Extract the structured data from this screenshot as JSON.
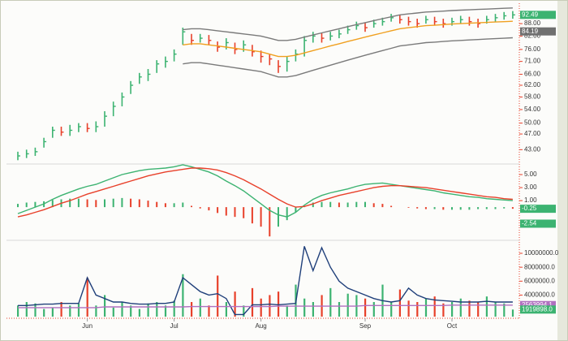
{
  "chart_data": [
    {
      "type": "ohlc",
      "log_scale": true,
      "ylim": [
        40,
        97
      ],
      "yticks": [
        {
          "value": 43,
          "label": "43.00"
        },
        {
          "value": 47,
          "label": "47.00"
        },
        {
          "value": 50,
          "label": "50.00"
        },
        {
          "value": 54,
          "label": "54.00"
        },
        {
          "value": 58,
          "label": "58.00"
        },
        {
          "value": 62,
          "label": "62.00"
        },
        {
          "value": 66,
          "label": "66.00"
        },
        {
          "value": 71,
          "label": "71.00"
        },
        {
          "value": 76,
          "label": "76.00"
        },
        {
          "value": 82,
          "label": "82.00"
        },
        {
          "value": 88,
          "label": "88.00"
        }
      ],
      "up_color": "#3cb371",
      "down_color": "#e8402a",
      "high": [
        42.5,
        43,
        43.5,
        46,
        49,
        49,
        49.5,
        50,
        50,
        50.5,
        53.5,
        56.5,
        59.5,
        63.5,
        66.5,
        68,
        71.5,
        73,
        76,
        86,
        83,
        83,
        82.5,
        79.5,
        81,
        79,
        80,
        78,
        75.5,
        74,
        71.5,
        73,
        76,
        82,
        84,
        83.5,
        84,
        85,
        87,
        89,
        88.5,
        90,
        91,
        93,
        92.5,
        91.5,
        90.5,
        92,
        91.5,
        90.5,
        91,
        92,
        91.5,
        90.5,
        92,
        93,
        94,
        94.5
      ],
      "low": [
        40.5,
        41,
        41.5,
        43.5,
        46,
        46.5,
        46.5,
        47.5,
        47.5,
        47.5,
        49,
        52,
        55,
        59,
        62.5,
        63.5,
        66.5,
        68.5,
        71,
        78,
        78,
        79,
        78,
        75,
        76,
        74,
        75,
        73,
        70.5,
        69.5,
        66.5,
        67,
        71,
        73,
        79,
        79,
        80,
        81,
        83,
        85,
        84,
        86,
        87,
        89,
        88,
        87,
        86,
        88,
        87,
        86,
        87,
        88,
        87,
        86,
        88,
        89,
        90,
        90.5
      ],
      "close": [
        41.5,
        42,
        42.5,
        45,
        48,
        47.5,
        48,
        49,
        48.5,
        49,
        52,
        55,
        58,
        62,
        65,
        66,
        70,
        71,
        74,
        84,
        80,
        81,
        80,
        77,
        79,
        76,
        78,
        75,
        73,
        72,
        69,
        71,
        74,
        80,
        82,
        81,
        82,
        83,
        85,
        87,
        86,
        88,
        89,
        91,
        90,
        89,
        88,
        90,
        89,
        88,
        89,
        90,
        89,
        88,
        90,
        91,
        92,
        92.49
      ],
      "series": [
        {
          "color": "#7a7a7a",
          "values": [
            null,
            null,
            null,
            null,
            null,
            null,
            null,
            null,
            null,
            null,
            null,
            null,
            null,
            null,
            null,
            null,
            null,
            null,
            null,
            85,
            85.5,
            85.5,
            85,
            84.5,
            84,
            83.5,
            83,
            82.5,
            82,
            81,
            80,
            80,
            80.5,
            81.5,
            82.5,
            83.5,
            84.5,
            85.5,
            86.5,
            87.5,
            88.5,
            89.5,
            90.5,
            91.5,
            92.5,
            93,
            93.5,
            94,
            94.2,
            94.5,
            94.8,
            95,
            95.2,
            95.4,
            95.6,
            95.8,
            96,
            96.2
          ]
        },
        {
          "color": "#7a7a7a",
          "values": [
            null,
            null,
            null,
            null,
            null,
            null,
            null,
            null,
            null,
            null,
            null,
            null,
            null,
            null,
            null,
            null,
            null,
            null,
            null,
            70,
            70.5,
            70.5,
            70,
            69.5,
            69,
            68.5,
            68,
            67.5,
            67,
            66,
            65,
            65,
            65.5,
            66.5,
            67.5,
            68.5,
            69.5,
            70.5,
            71.5,
            72.5,
            73.5,
            74.5,
            75.5,
            76.5,
            77.5,
            78,
            78.5,
            79,
            79.2,
            79.5,
            79.8,
            80,
            80.2,
            80.4,
            80.6,
            80.8,
            81,
            81.2
          ]
        },
        {
          "color": "#f0a020",
          "values": [
            null,
            null,
            null,
            null,
            null,
            null,
            null,
            null,
            null,
            null,
            null,
            null,
            null,
            null,
            null,
            null,
            null,
            null,
            null,
            78,
            78.5,
            78.5,
            78,
            77.5,
            77,
            76.5,
            76,
            75.5,
            75,
            74,
            73,
            73,
            73.5,
            74.5,
            75.5,
            76.5,
            77.5,
            78.5,
            79.5,
            80.5,
            81.5,
            82.5,
            83.5,
            84.5,
            85.5,
            86,
            86.5,
            87,
            87.2,
            87.5,
            87.8,
            88,
            88.2,
            88.4,
            88.6,
            88.8,
            89,
            89.2
          ]
        }
      ],
      "badges": [
        {
          "value": 92.49,
          "color": "#3cb371"
        },
        {
          "value": 84.19,
          "color": "#707070"
        }
      ]
    },
    {
      "type": "macd",
      "ylim": [
        -4.6,
        6.25
      ],
      "yticks": [
        {
          "value": 5,
          "label": "5.00"
        },
        {
          "value": 3,
          "label": "3.00"
        },
        {
          "value": 1,
          "label": "1.00"
        }
      ],
      "up_color": "#3cb371",
      "down_color": "#e8402a",
      "histogram": [
        0.5,
        0.7,
        0.8,
        0.9,
        1.1,
        1.2,
        1.3,
        1.3,
        1.2,
        1.1,
        1.2,
        1.3,
        1.4,
        1.3,
        1.2,
        1,
        0.8,
        0.6,
        0.6,
        0.7,
        0.2,
        -0.2,
        -0.5,
        -0.9,
        -1.3,
        -1.5,
        -1.7,
        -2.5,
        -3,
        -4.5,
        -3,
        -2,
        -0.8,
        0.2,
        0.7,
        0.8,
        0.8,
        0.7,
        0.7,
        0.8,
        0.8,
        0.6,
        0.5,
        0.2,
        0,
        -0.1,
        -0.2,
        -0.3,
        -0.3,
        -0.4,
        -0.4,
        -0.4,
        -0.4,
        -0.3,
        -0.3,
        -0.3,
        -0.2,
        -0.25
      ],
      "series": [
        {
          "color": "#3cb371",
          "values": [
            -1,
            -0.5,
            0,
            0.5,
            1.2,
            1.8,
            2.3,
            2.8,
            3.2,
            3.5,
            4,
            4.5,
            5,
            5.3,
            5.6,
            5.8,
            5.9,
            6,
            6.2,
            6.5,
            6.2,
            5.8,
            5.4,
            4.8,
            4,
            3.3,
            2.5,
            1.5,
            0.5,
            -0.5,
            -1.2,
            -1.5,
            -0.8,
            0.3,
            1.2,
            1.8,
            2.2,
            2.5,
            2.8,
            3.2,
            3.5,
            3.6,
            3.7,
            3.5,
            3.3,
            3.1,
            2.9,
            2.7,
            2.5,
            2.2,
            2,
            1.8,
            1.6,
            1.5,
            1.3,
            1.2,
            1.1,
            1
          ]
        },
        {
          "color": "#e8402a",
          "values": [
            -1.5,
            -1.2,
            -0.8,
            -0.4,
            0.1,
            0.6,
            1,
            1.5,
            2,
            2.4,
            2.8,
            3.2,
            3.6,
            4,
            4.4,
            4.8,
            5.1,
            5.4,
            5.6,
            5.8,
            6,
            6,
            5.9,
            5.7,
            5.3,
            4.8,
            4.2,
            3.5,
            2.8,
            2,
            1.2,
            0.5,
            0,
            0.1,
            0.5,
            1,
            1.4,
            1.8,
            2.1,
            2.4,
            2.7,
            3,
            3.2,
            3.3,
            3.3,
            3.2,
            3.1,
            3,
            2.8,
            2.6,
            2.4,
            2.2,
            2,
            1.8,
            1.6,
            1.5,
            1.3,
            1.2
          ]
        }
      ],
      "badges": [
        {
          "value": -0.25,
          "color": "#3cb371"
        },
        {
          "value": -2.54,
          "color": "#3cb371"
        }
      ]
    },
    {
      "type": "volume",
      "ylim": [
        900000,
        11400000
      ],
      "yticks": [
        {
          "value": 10000000,
          "label": "10000000.0"
        },
        {
          "value": 8000000,
          "label": "8000000.0"
        },
        {
          "value": 6000000,
          "label": "6000000.0"
        },
        {
          "value": 4000000,
          "label": "4000000.0"
        }
      ],
      "up_color": "#3cb371",
      "down_color": "#e8402a",
      "categories": [
        null,
        null,
        null,
        null,
        null,
        null,
        null,
        null,
        "Jun",
        null,
        null,
        null,
        null,
        null,
        null,
        null,
        null,
        null,
        "Jul",
        null,
        null,
        null,
        null,
        null,
        null,
        null,
        null,
        null,
        "Aug",
        null,
        null,
        null,
        null,
        null,
        null,
        null,
        null,
        null,
        null,
        null,
        "Sep",
        null,
        null,
        null,
        null,
        null,
        null,
        null,
        null,
        null,
        "Oct",
        null,
        null,
        null,
        null,
        null,
        null,
        null
      ],
      "values": [
        2500000,
        3000000,
        2800000,
        2000000,
        2200000,
        3000000,
        2500000,
        2800000,
        6500000,
        2500000,
        4000000,
        2200000,
        3000000,
        2500000,
        2000000,
        2800000,
        3000000,
        2500000,
        3200000,
        7000000,
        3000000,
        3500000,
        2500000,
        6800000,
        3000000,
        4500000,
        2500000,
        5000000,
        3500000,
        4000000,
        4500000,
        2500000,
        5500000,
        3500000,
        3000000,
        4000000,
        5000000,
        3000000,
        4200000,
        4000000,
        3500000,
        3000000,
        5500000,
        3000000,
        4800000,
        3200000,
        3000000,
        3500000,
        3800000,
        2800000,
        3000000,
        3500000,
        3200000,
        3000000,
        3800000,
        3000000,
        2800000,
        1919898
      ],
      "series": [
        {
          "color": "#1f3f7a",
          "values": [
            2500000,
            2500000,
            2600000,
            2700000,
            2700000,
            2800000,
            2800000,
            2800000,
            6500000,
            4000000,
            3500000,
            3000000,
            3000000,
            2800000,
            2700000,
            2700000,
            2800000,
            2800000,
            3000000,
            6500000,
            5500000,
            4500000,
            4000000,
            4200000,
            3500000,
            1200000,
            1200000,
            2600000,
            2600000,
            2700000,
            2600000,
            2700000,
            2800000,
            11000000,
            7500000,
            10800000,
            8000000,
            6000000,
            5000000,
            4500000,
            4000000,
            3500000,
            3200000,
            3000000,
            3200000,
            5000000,
            4000000,
            3500000,
            3300000,
            3200000,
            3100000,
            3000000,
            3000000,
            3000000,
            3100000,
            3000000,
            3000000,
            3000000
          ]
        },
        {
          "color": "#b070c0",
          "values": [
            2200000,
            2200000,
            2200000,
            2200000,
            2200000,
            2200000,
            2200000,
            2200000,
            2200000,
            2200000,
            2300000,
            2300000,
            2300000,
            2300000,
            2300000,
            2300000,
            2300000,
            2300000,
            2300000,
            2300000,
            2350000,
            2350000,
            2350000,
            2350000,
            2350000,
            2350000,
            2350000,
            2350000,
            2350000,
            2350000,
            2400000,
            2400000,
            2400000,
            2400000,
            2400000,
            2400000,
            2400000,
            2400000,
            2400000,
            2400000,
            2500000,
            2500000,
            2500000,
            2500000,
            2500000,
            2500000,
            2500000,
            2500000,
            2500000,
            2500000,
            2560000,
            2560000,
            2560000,
            2560000,
            2560000,
            2560000,
            2560000,
            2560000
          ]
        }
      ],
      "badges": [
        {
          "value": 2563994.1,
          "color": "#b070c0"
        },
        {
          "value": 1919898,
          "label": "1919898.0",
          "color": "#3cb371"
        }
      ]
    }
  ]
}
